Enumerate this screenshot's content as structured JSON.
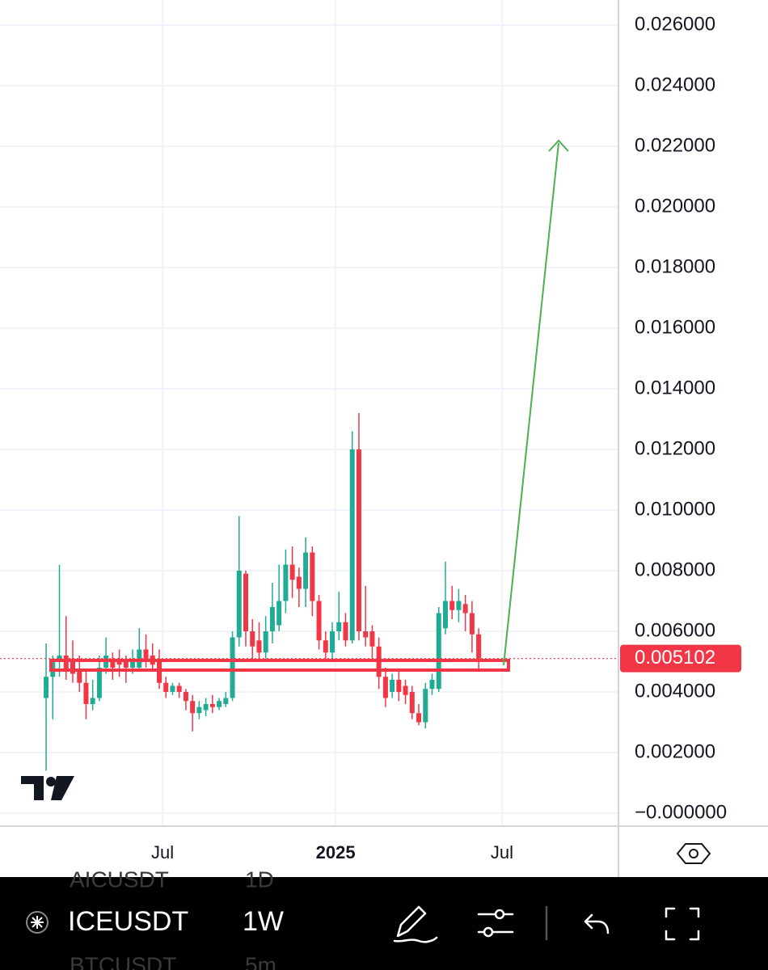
{
  "chart_data": {
    "type": "candlestick",
    "up_color": "#22ab94",
    "down_color": "#f23645",
    "open": [
      0.0038,
      0.0045,
      0.005,
      0.0052,
      0.005,
      0.0047,
      0.0043,
      0.0036,
      0.0038,
      0.0048,
      0.005,
      0.005,
      0.005,
      0.0048,
      0.0048,
      0.0054,
      0.0052,
      0.005,
      0.0043,
      0.004,
      0.0042,
      0.004,
      0.0037,
      0.0033,
      0.0034,
      0.0036,
      0.0035,
      0.0036,
      0.0038,
      0.0058,
      0.0079,
      0.006,
      0.0057,
      0.0053,
      0.006,
      0.0062,
      0.007,
      0.0082,
      0.0078,
      0.0074,
      0.0086,
      0.007,
      0.0057,
      0.0053,
      0.006,
      0.0063,
      0.0057,
      0.012,
      0.006,
      0.006,
      0.0055,
      0.0045,
      0.004,
      0.0044,
      0.0042,
      0.004,
      0.0033,
      0.003,
      0.0041,
      0.0041,
      0.0061,
      0.007,
      0.0067,
      0.0069,
      0.0066,
      0.0059
    ],
    "high": [
      0.0056,
      0.0052,
      0.0082,
      0.0065,
      0.0057,
      0.0052,
      0.0047,
      0.0044,
      0.0052,
      0.0058,
      0.0053,
      0.0054,
      0.0052,
      0.0054,
      0.0061,
      0.0059,
      0.0056,
      0.0054,
      0.0045,
      0.0043,
      0.0043,
      0.0041,
      0.0039,
      0.0037,
      0.0038,
      0.0039,
      0.0038,
      0.004,
      0.006,
      0.0098,
      0.008,
      0.0064,
      0.0063,
      0.0065,
      0.0076,
      0.0082,
      0.0087,
      0.0088,
      0.0081,
      0.0091,
      0.0088,
      0.0072,
      0.006,
      0.0063,
      0.0073,
      0.0066,
      0.0126,
      0.0132,
      0.0075,
      0.0062,
      0.0058,
      0.0048,
      0.0046,
      0.0047,
      0.0044,
      0.0042,
      0.0036,
      0.0043,
      0.0046,
      0.0068,
      0.0083,
      0.0075,
      0.0074,
      0.0072,
      0.007,
      0.0061
    ],
    "low": [
      0.0014,
      0.0031,
      0.0045,
      0.0044,
      0.0043,
      0.004,
      0.0031,
      0.0034,
      0.0037,
      0.0046,
      0.0044,
      0.0045,
      0.0043,
      0.0046,
      0.0047,
      0.0048,
      0.0047,
      0.0041,
      0.0038,
      0.0039,
      0.0038,
      0.0034,
      0.0027,
      0.0031,
      0.0032,
      0.0033,
      0.0034,
      0.0035,
      0.0037,
      0.0055,
      0.0055,
      0.005,
      0.005,
      0.0051,
      0.0056,
      0.006,
      0.0066,
      0.0071,
      0.0068,
      0.0068,
      0.0065,
      0.0054,
      0.0051,
      0.0051,
      0.0057,
      0.0055,
      0.0056,
      0.0057,
      0.0055,
      0.005,
      0.0041,
      0.0035,
      0.0038,
      0.0037,
      0.0036,
      0.0031,
      0.0029,
      0.0028,
      0.0039,
      0.004,
      0.0059,
      0.0064,
      0.0063,
      0.006,
      0.0053,
      0.0047
    ],
    "close": [
      0.0045,
      0.005,
      0.0052,
      0.0047,
      0.0046,
      0.0043,
      0.0036,
      0.0038,
      0.0048,
      0.0052,
      0.0048,
      0.0049,
      0.0048,
      0.005,
      0.0054,
      0.005,
      0.0049,
      0.0043,
      0.004,
      0.0042,
      0.004,
      0.0037,
      0.0033,
      0.0035,
      0.0036,
      0.0035,
      0.0037,
      0.0038,
      0.0058,
      0.008,
      0.006,
      0.0055,
      0.0053,
      0.006,
      0.0068,
      0.007,
      0.0082,
      0.0077,
      0.0074,
      0.0086,
      0.007,
      0.0057,
      0.0053,
      0.006,
      0.0063,
      0.0057,
      0.012,
      0.006,
      0.0058,
      0.0055,
      0.0045,
      0.0038,
      0.0044,
      0.004,
      0.0039,
      0.0033,
      0.003,
      0.0041,
      0.0044,
      0.0066,
      0.007,
      0.0067,
      0.007,
      0.0066,
      0.0059,
      0.005102
    ],
    "last_price": {
      "value": 0.005102,
      "label": "0.005102"
    },
    "xlim": [
      -6.93,
      86.0
    ],
    "xticks": [
      {
        "value": 17.5,
        "label": "Jul",
        "bold": false
      },
      {
        "value": 43.5,
        "label": "2025",
        "bold": true
      },
      {
        "value": 68.5,
        "label": "Jul",
        "bold": false
      }
    ],
    "ylim": [
      -0.000427,
      0.026827
    ],
    "yticks": [
      {
        "value": 0,
        "label": "−0.000000"
      },
      {
        "value": 0.002,
        "label": "0.002000"
      },
      {
        "value": 0.004,
        "label": "0.004000"
      },
      {
        "value": 0.006,
        "label": "0.006000"
      },
      {
        "value": 0.008,
        "label": "0.008000"
      },
      {
        "value": 0.01,
        "label": "0.010000"
      },
      {
        "value": 0.012,
        "label": "0.012000"
      },
      {
        "value": 0.014,
        "label": "0.014000"
      },
      {
        "value": 0.016,
        "label": "0.016000"
      },
      {
        "value": 0.018,
        "label": "0.018000"
      },
      {
        "value": 0.02,
        "label": "0.020000"
      },
      {
        "value": 0.022,
        "label": "0.022000"
      },
      {
        "value": 0.024,
        "label": "0.024000"
      },
      {
        "value": 0.026,
        "label": "0.026000"
      }
    ],
    "grid": true
  },
  "toolbar": {
    "symbol": "ICEUSDT",
    "interval": "1W",
    "faded_above": [
      "AICUSDT",
      "1D"
    ],
    "faded_below": [
      "BTCUSDT",
      "5m"
    ]
  }
}
